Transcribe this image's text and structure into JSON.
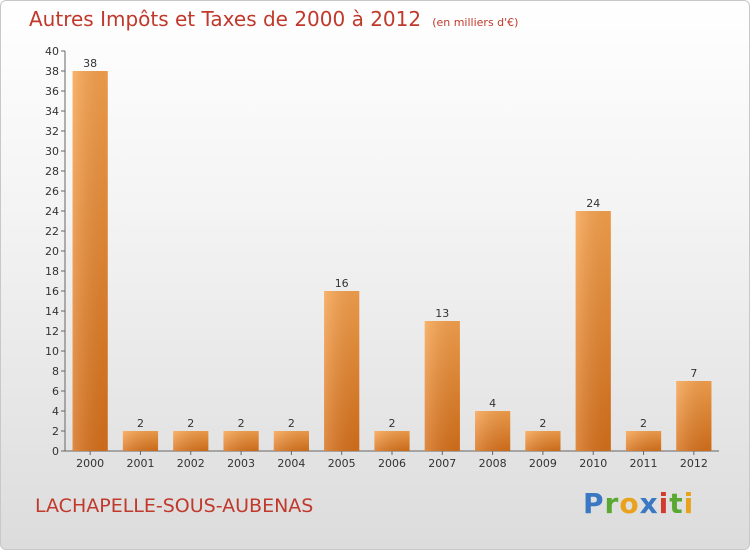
{
  "chart_data": {
    "type": "bar",
    "title": "Autres Impôts et Taxes de 2000 à 2012",
    "subtitle": "(en milliers d'€)",
    "categories": [
      "2000",
      "2001",
      "2002",
      "2003",
      "2004",
      "2005",
      "2006",
      "2007",
      "2008",
      "2009",
      "2010",
      "2011",
      "2012"
    ],
    "values": [
      38,
      2,
      2,
      2,
      2,
      16,
      2,
      13,
      4,
      2,
      24,
      2,
      7
    ],
    "data_labels": [
      "38",
      "2",
      "2",
      "2",
      "2",
      "16",
      "2",
      "13",
      "4",
      "2",
      "24",
      "2",
      "7"
    ],
    "ylim": [
      0,
      40
    ],
    "yticks": [
      "0",
      "2",
      "4",
      "6",
      "8",
      "10",
      "12",
      "14",
      "16",
      "18",
      "20",
      "22",
      "24",
      "26",
      "28",
      "30",
      "32",
      "34",
      "36",
      "38",
      "40"
    ],
    "xlabel": "",
    "ylabel": "",
    "grid": false,
    "bar_color": "#f08a2c"
  },
  "commune": "LACHAPELLE-SOUS-AUBENAS",
  "logo": {
    "text": "Proxiti"
  }
}
